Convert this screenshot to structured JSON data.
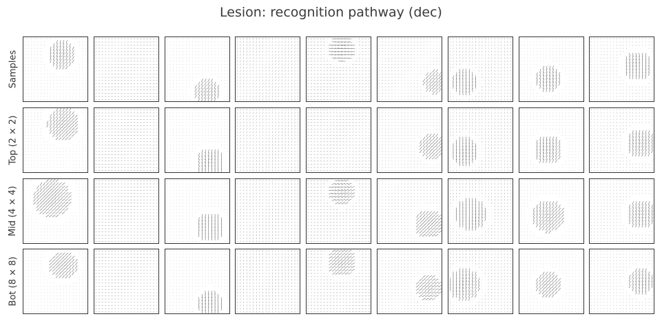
{
  "chart_data": {
    "type": "quiver-grid",
    "title": "Lesion: recognition pathway (dec)",
    "rows": [
      "Samples",
      "Top (2 × 2)",
      "Mid (4 × 4)",
      "Bot (8 × 8)"
    ],
    "columns": 9,
    "grid": false,
    "arrow_color": "#555555",
    "frame_color": "#333333",
    "panels": [
      [
        {
          "blob": [
            0.6,
            0.28,
            0.22
          ],
          "angle": 60,
          "bg": 0.1
        },
        {
          "blob": null,
          "angle": 15,
          "bg": 0.5
        },
        {
          "blob": [
            0.65,
            0.85,
            0.2
          ],
          "angle": 80,
          "bg": 0.1
        },
        {
          "blob": null,
          "angle": 80,
          "bg": 0.5
        },
        {
          "blob": [
            0.55,
            0.18,
            0.2
          ],
          "angle": 10,
          "bg": 0.5
        },
        {
          "blob": [
            0.9,
            0.7,
            0.18
          ],
          "angle": 40,
          "bg": 0.35
        },
        {
          "blob": [
            0.25,
            0.7,
            0.2
          ],
          "angle": 85,
          "bg": 0.4
        },
        {
          "blob": [
            0.45,
            0.65,
            0.2
          ],
          "angle": 60,
          "bg": 0.1
        },
        {
          "blob": [
            0.75,
            0.45,
            0.22
          ],
          "angle": 85,
          "bg": 0.2
        }
      ],
      [
        {
          "blob": [
            0.62,
            0.25,
            0.25
          ],
          "angle": 60,
          "bg": 0.1
        },
        {
          "blob": null,
          "angle": 20,
          "bg": 0.5
        },
        {
          "blob": [
            0.7,
            0.85,
            0.22
          ],
          "angle": 80,
          "bg": 0.1
        },
        {
          "blob": null,
          "angle": 80,
          "bg": 0.5
        },
        {
          "blob": null,
          "angle": 15,
          "bg": 0.5
        },
        {
          "blob": [
            0.85,
            0.6,
            0.2
          ],
          "angle": 40,
          "bg": 0.3
        },
        {
          "blob": [
            0.25,
            0.68,
            0.22
          ],
          "angle": 80,
          "bg": 0.4
        },
        {
          "blob": [
            0.45,
            0.65,
            0.22
          ],
          "angle": 65,
          "bg": 0.1
        },
        {
          "blob": [
            0.8,
            0.55,
            0.22
          ],
          "angle": 85,
          "bg": 0.25
        }
      ],
      [
        {
          "blob": [
            0.45,
            0.3,
            0.3
          ],
          "angle": 55,
          "bg": 0.1
        },
        {
          "blob": null,
          "angle": 25,
          "bg": 0.5
        },
        {
          "blob": [
            0.7,
            0.75,
            0.22
          ],
          "angle": 75,
          "bg": 0.1
        },
        {
          "blob": null,
          "angle": 70,
          "bg": 0.5
        },
        {
          "blob": [
            0.55,
            0.2,
            0.2
          ],
          "angle": 10,
          "bg": 0.5
        },
        {
          "blob": [
            0.8,
            0.7,
            0.22
          ],
          "angle": 45,
          "bg": 0.3
        },
        {
          "blob": [
            0.35,
            0.55,
            0.25
          ],
          "angle": 75,
          "bg": 0.4
        },
        {
          "blob": [
            0.45,
            0.58,
            0.25
          ],
          "angle": 65,
          "bg": 0.1
        },
        {
          "blob": [
            0.8,
            0.55,
            0.22
          ],
          "angle": 88,
          "bg": 0.2
        }
      ],
      [
        {
          "blob": [
            0.62,
            0.25,
            0.22
          ],
          "angle": 60,
          "bg": 0.1
        },
        {
          "blob": null,
          "angle": 20,
          "bg": 0.5
        },
        {
          "blob": [
            0.7,
            0.85,
            0.2
          ],
          "angle": 80,
          "bg": 0.1
        },
        {
          "blob": null,
          "angle": 75,
          "bg": 0.5
        },
        {
          "blob": [
            0.55,
            0.2,
            0.22
          ],
          "angle": 15,
          "bg": 0.5
        },
        {
          "blob": [
            0.8,
            0.6,
            0.2
          ],
          "angle": 45,
          "bg": 0.3
        },
        {
          "blob": [
            0.25,
            0.55,
            0.25
          ],
          "angle": 75,
          "bg": 0.4
        },
        {
          "blob": [
            0.45,
            0.55,
            0.2
          ],
          "angle": 70,
          "bg": 0.1
        },
        {
          "blob": [
            0.8,
            0.5,
            0.2
          ],
          "angle": 80,
          "bg": 0.2
        }
      ]
    ]
  }
}
